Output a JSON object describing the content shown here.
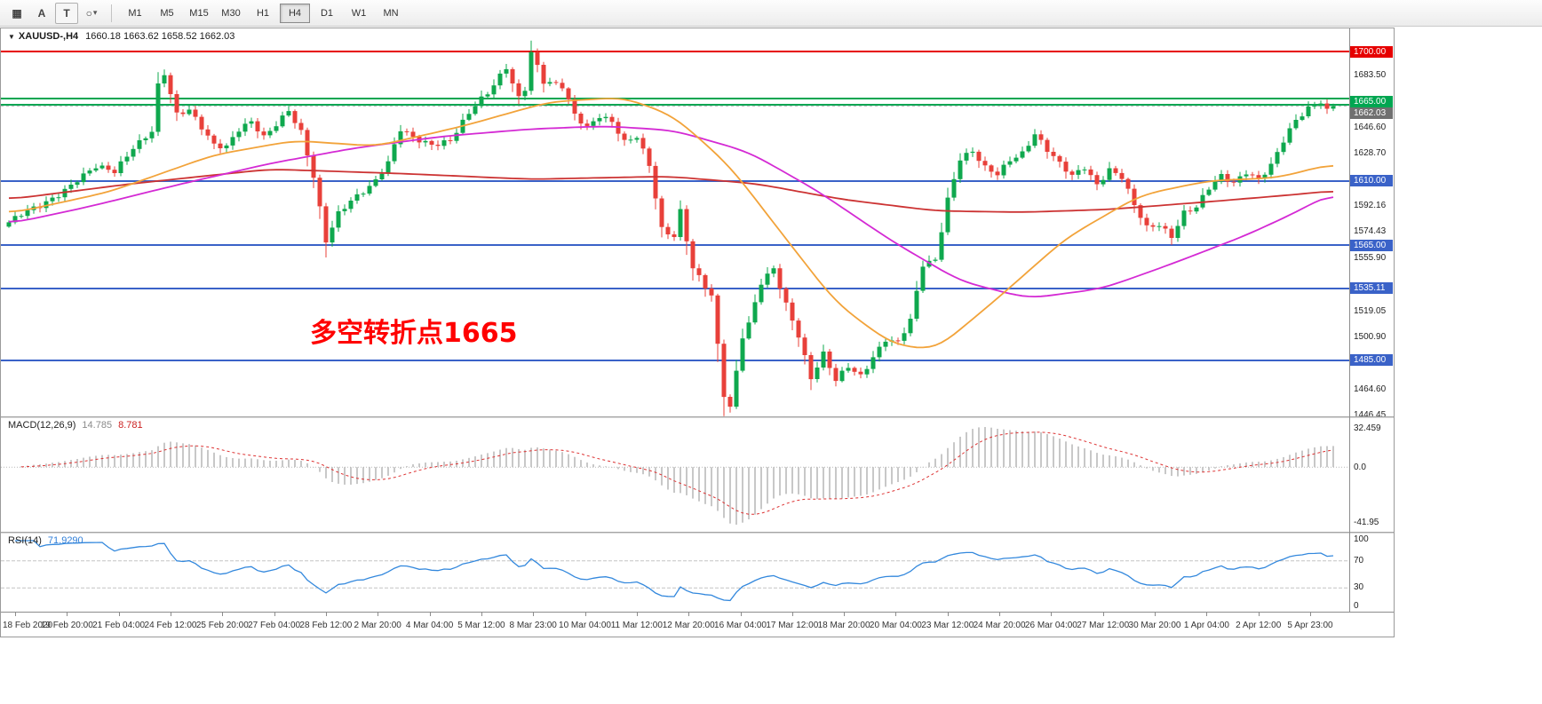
{
  "toolbar": {
    "tools": [
      {
        "name": "grid",
        "glyph": "▦"
      },
      {
        "name": "text",
        "glyph": "A"
      },
      {
        "name": "label",
        "glyph": "T"
      },
      {
        "name": "shapes",
        "glyph": "○"
      }
    ],
    "dropdown_caret": "▾",
    "timeframes": [
      {
        "label": "M1"
      },
      {
        "label": "M5"
      },
      {
        "label": "M15"
      },
      {
        "label": "M30"
      },
      {
        "label": "H1"
      },
      {
        "label": "H4",
        "active": true
      },
      {
        "label": "D1"
      },
      {
        "label": "W1"
      },
      {
        "label": "MN"
      }
    ]
  },
  "header": {
    "collapse_arrow": "▼",
    "symbol_timeframe": "XAUUSD-,H4",
    "ohlc_values": "1660.18 1663.62 1658.52 1662.03"
  },
  "indicators": {
    "macd": {
      "name": "MACD(12,26,9)",
      "main_value": "14.785",
      "signal_value": "8.781",
      "scale": [
        "32.459",
        "0.0",
        "-41.95"
      ]
    },
    "rsi": {
      "name": "RSI(14)",
      "value": "71.9290",
      "scale": [
        "100",
        "70",
        "30",
        "0"
      ]
    }
  },
  "chart_data": {
    "type": "candlestick",
    "symbol": "XAUUSD-",
    "timeframe": "H4",
    "bull_color": "#0fa84e",
    "bear_color": "#e8403a",
    "ylim": [
      1445.8,
      1716.1
    ],
    "candles": 214,
    "last_ohlc": {
      "open": 1660.18,
      "high": 1663.62,
      "low": 1658.52,
      "close": 1662.03
    },
    "current_price": 1662.03,
    "close_anchors": [
      [
        0,
        1581
      ],
      [
        2,
        1586
      ],
      [
        5,
        1592
      ],
      [
        8,
        1601
      ],
      [
        11,
        1611
      ],
      [
        14,
        1619
      ],
      [
        17,
        1616
      ],
      [
        20,
        1634
      ],
      [
        23,
        1645
      ],
      [
        24,
        1676
      ],
      [
        25,
        1684
      ],
      [
        27,
        1655
      ],
      [
        29,
        1659
      ],
      [
        31,
        1648
      ],
      [
        33,
        1636
      ],
      [
        35,
        1634
      ],
      [
        37,
        1645
      ],
      [
        39,
        1650
      ],
      [
        41,
        1640
      ],
      [
        43,
        1650
      ],
      [
        45,
        1660
      ],
      [
        47,
        1644
      ],
      [
        49,
        1612
      ],
      [
        51,
        1567
      ],
      [
        53,
        1587
      ],
      [
        55,
        1597
      ],
      [
        59,
        1610
      ],
      [
        61,
        1622
      ],
      [
        63,
        1645
      ],
      [
        65,
        1640
      ],
      [
        68,
        1636
      ],
      [
        71,
        1638
      ],
      [
        73,
        1650
      ],
      [
        75,
        1662
      ],
      [
        77,
        1671
      ],
      [
        79,
        1684
      ],
      [
        80,
        1690
      ],
      [
        82,
        1668
      ],
      [
        83,
        1674
      ],
      [
        84,
        1699
      ],
      [
        86,
        1678
      ],
      [
        89,
        1676
      ],
      [
        91,
        1657
      ],
      [
        93,
        1648
      ],
      [
        95,
        1655
      ],
      [
        97,
        1650
      ],
      [
        99,
        1636
      ],
      [
        101,
        1641
      ],
      [
        103,
        1622
      ],
      [
        105,
        1577
      ],
      [
        107,
        1571
      ],
      [
        108,
        1588
      ],
      [
        110,
        1548
      ],
      [
        113,
        1530
      ],
      [
        115,
        1462
      ],
      [
        116,
        1453
      ],
      [
        118,
        1502
      ],
      [
        119,
        1510
      ],
      [
        121,
        1538
      ],
      [
        123,
        1548
      ],
      [
        125,
        1524
      ],
      [
        127,
        1503
      ],
      [
        129,
        1473
      ],
      [
        131,
        1489
      ],
      [
        133,
        1470
      ],
      [
        135,
        1480
      ],
      [
        137,
        1474
      ],
      [
        139,
        1488
      ],
      [
        141,
        1500
      ],
      [
        143,
        1497
      ],
      [
        145,
        1512
      ],
      [
        147,
        1551
      ],
      [
        149,
        1555
      ],
      [
        151,
        1598
      ],
      [
        153,
        1626
      ],
      [
        155,
        1630
      ],
      [
        157,
        1618
      ],
      [
        159,
        1614
      ],
      [
        161,
        1625
      ],
      [
        163,
        1630
      ],
      [
        165,
        1643
      ],
      [
        167,
        1631
      ],
      [
        169,
        1621
      ],
      [
        171,
        1613
      ],
      [
        173,
        1620
      ],
      [
        175,
        1608
      ],
      [
        177,
        1618
      ],
      [
        179,
        1612
      ],
      [
        181,
        1592
      ],
      [
        183,
        1577
      ],
      [
        185,
        1580
      ],
      [
        187,
        1572
      ],
      [
        189,
        1588
      ],
      [
        191,
        1591
      ],
      [
        193,
        1604
      ],
      [
        195,
        1613
      ],
      [
        197,
        1609
      ],
      [
        199,
        1617
      ],
      [
        201,
        1611
      ],
      [
        203,
        1620
      ],
      [
        205,
        1637
      ],
      [
        207,
        1652
      ],
      [
        209,
        1661
      ],
      [
        211,
        1666
      ],
      [
        212,
        1660.18
      ],
      [
        213,
        1662.03
      ]
    ],
    "moving_averages": [
      {
        "name": "ma-slow-red",
        "color": "#cc3333",
        "anchors": [
          [
            0,
            1597
          ],
          [
            20,
            1608
          ],
          [
            42,
            1618
          ],
          [
            63,
            1615
          ],
          [
            84,
            1611
          ],
          [
            106,
            1613
          ],
          [
            120,
            1608
          ],
          [
            134,
            1597
          ],
          [
            149,
            1589
          ],
          [
            163,
            1588
          ],
          [
            177,
            1590
          ],
          [
            192,
            1595
          ],
          [
            206,
            1600
          ],
          [
            213,
            1603
          ]
        ]
      },
      {
        "name": "ma-mid-magenta",
        "color": "#d42ad4",
        "anchors": [
          [
            0,
            1580
          ],
          [
            13,
            1592
          ],
          [
            27,
            1607
          ],
          [
            42,
            1622
          ],
          [
            56,
            1633
          ],
          [
            70,
            1641
          ],
          [
            84,
            1646
          ],
          [
            96,
            1648
          ],
          [
            107,
            1645
          ],
          [
            119,
            1630
          ],
          [
            130,
            1603
          ],
          [
            142,
            1568
          ],
          [
            153,
            1540
          ],
          [
            164,
            1528
          ],
          [
            176,
            1535
          ],
          [
            187,
            1552
          ],
          [
            199,
            1572
          ],
          [
            207,
            1588
          ],
          [
            213,
            1602
          ]
        ]
      },
      {
        "name": "ma-fast-orange",
        "color": "#f2a33a",
        "anchors": [
          [
            0,
            1587
          ],
          [
            16,
            1602
          ],
          [
            33,
            1628
          ],
          [
            46,
            1638
          ],
          [
            59,
            1634
          ],
          [
            73,
            1648
          ],
          [
            87,
            1665
          ],
          [
            99,
            1668
          ],
          [
            107,
            1655
          ],
          [
            116,
            1620
          ],
          [
            124,
            1575
          ],
          [
            133,
            1525
          ],
          [
            142,
            1496
          ],
          [
            149,
            1492
          ],
          [
            159,
            1528
          ],
          [
            170,
            1570
          ],
          [
            182,
            1600
          ],
          [
            193,
            1610
          ],
          [
            204,
            1612
          ],
          [
            213,
            1622
          ]
        ]
      }
    ],
    "horizontal_lines": [
      {
        "price": 1700.0,
        "color": "#e60000"
      },
      {
        "price": 1667.0,
        "color": "#00a651"
      },
      {
        "price": 1663.0,
        "color": "#00a651"
      },
      {
        "price": 1610.0,
        "color": "#3a62c8"
      },
      {
        "price": 1565.0,
        "color": "#3a62c8"
      },
      {
        "price": 1535.11,
        "color": "#3a62c8"
      },
      {
        "price": 1485.0,
        "color": "#3a62c8"
      }
    ],
    "price_badges": [
      {
        "label": "1700.00",
        "price": 1700.0,
        "color": "#e60000"
      },
      {
        "label": "1665.00",
        "price": 1665.0,
        "color": "#00a651"
      },
      {
        "label": "1662.03",
        "price": 1662.03,
        "color": "#707070",
        "stack_below": 1665.0
      },
      {
        "label": "1610.00",
        "price": 1610.0,
        "color": "#3a62c8"
      },
      {
        "label": "1565.00",
        "price": 1565.0,
        "color": "#3a62c8"
      },
      {
        "label": "1535.11",
        "price": 1535.11,
        "color": "#3a62c8"
      },
      {
        "label": "1485.00",
        "price": 1485.0,
        "color": "#3a62c8"
      }
    ],
    "y_ticks": [
      {
        "label": "1683.50",
        "price": 1683.5
      },
      {
        "label": "1646.60",
        "price": 1646.6
      },
      {
        "label": "1628.70",
        "price": 1628.7
      },
      {
        "label": "1592.16",
        "price": 1592.16
      },
      {
        "label": "1574.43",
        "price": 1574.43
      },
      {
        "label": "1555.90",
        "price": 1555.9
      },
      {
        "label": "1519.05",
        "price": 1519.05
      },
      {
        "label": "1500.90",
        "price": 1500.9
      },
      {
        "label": "1464.60",
        "price": 1464.6
      },
      {
        "label": "1446.45",
        "price": 1446.45
      }
    ],
    "x_labels": [
      "18 Feb 2020",
      "19 Feb 20:00",
      "21 Feb 04:00",
      "24 Feb 12:00",
      "25 Feb 20:00",
      "27 Feb 04:00",
      "28 Feb 12:00",
      "2 Mar 20:00",
      "4 Mar 04:00",
      "5 Mar 12:00",
      "8 Mar 23:00",
      "10 Mar 04:00",
      "11 Mar 12:00",
      "12 Mar 20:00",
      "16 Mar 04:00",
      "17 Mar 12:00",
      "18 Mar 20:00",
      "20 Mar 04:00",
      "23 Mar 12:00",
      "24 Mar 20:00",
      "26 Mar 04:00",
      "27 Mar 12:00",
      "30 Mar 20:00",
      "1 Apr 04:00",
      "2 Apr 12:00",
      "5 Apr 23:00"
    ],
    "annotation": {
      "text": "多空转折点1665",
      "color": "#ff0000"
    },
    "macd": {
      "fast": 12,
      "slow": 26,
      "signal": 9,
      "main": 14.785,
      "signal_value": 8.781,
      "scale_max": 32.459,
      "scale_min": -41.95,
      "histogram_color": "#b5b5b5",
      "signal_color": "#dd3333"
    },
    "rsi": {
      "period": 14,
      "value": 71.929,
      "levels": [
        70,
        30
      ],
      "color": "#3388dd"
    }
  }
}
